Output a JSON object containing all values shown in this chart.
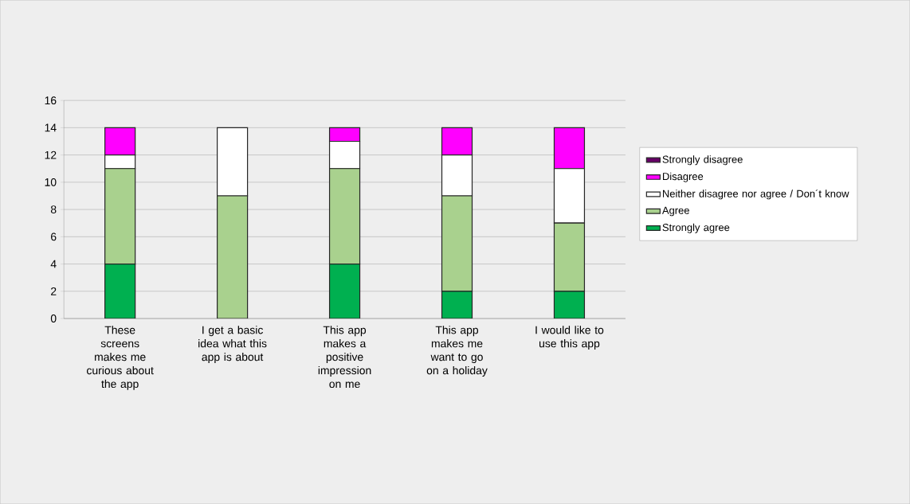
{
  "chart_data": {
    "type": "bar",
    "stacked": true,
    "categories": [
      "These screens makes me curious about the app",
      "I get a basic idea what this app is about",
      "This app makes a positive impression on me",
      "This app makes me want to go on a holiday",
      "I would like to use this app"
    ],
    "series": [
      {
        "name": "Strongly agree",
        "color": "#00b050",
        "values": [
          4,
          0,
          4,
          2,
          2
        ]
      },
      {
        "name": "Agree",
        "color": "#a9d18e",
        "values": [
          7,
          9,
          7,
          7,
          5
        ]
      },
      {
        "name": "Neither disagree nor agree / Don´t know",
        "color": "#ffffff",
        "values": [
          1,
          5,
          2,
          3,
          4
        ]
      },
      {
        "name": "Disagree",
        "color": "#ff00ff",
        "values": [
          2,
          0,
          1,
          2,
          3
        ]
      },
      {
        "name": "Strongly disagree",
        "color": "#660066",
        "values": [
          0,
          0,
          0,
          0,
          0
        ]
      }
    ],
    "ylim": [
      0,
      16
    ],
    "yticks": [
      0,
      2,
      4,
      6,
      8,
      10,
      12,
      14,
      16
    ],
    "grid": "y",
    "legend": "right"
  }
}
